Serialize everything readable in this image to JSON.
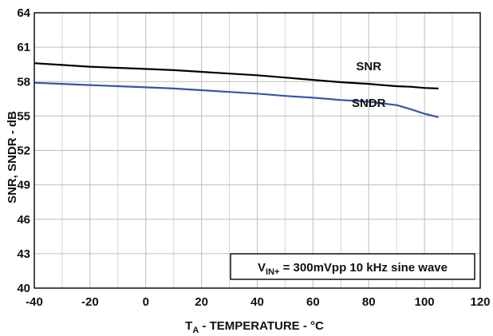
{
  "chart_data": {
    "type": "line",
    "xlabel": {
      "main": "T",
      "sub": "A",
      "rest": " - TEMPERATURE - °C"
    },
    "ylabel": "SNR, SNDR - dB",
    "xlim": [
      -40,
      120
    ],
    "ylim": [
      40,
      64
    ],
    "x_ticks": [
      "-40",
      "-20",
      "0",
      "20",
      "40",
      "60",
      "80",
      "100",
      "120"
    ],
    "y_ticks": [
      "40",
      "43",
      "46",
      "49",
      "52",
      "55",
      "58",
      "61",
      "64"
    ],
    "x_tick_values": [
      -40,
      -20,
      0,
      20,
      40,
      60,
      80,
      100,
      120
    ],
    "y_tick_values": [
      40,
      43,
      46,
      49,
      52,
      55,
      58,
      61,
      64
    ],
    "x_minor_values": [
      -30,
      -10,
      10,
      30,
      50,
      70,
      90,
      110
    ],
    "grid": true,
    "series": [
      {
        "name": "SNR",
        "color": "#000000",
        "x": [
          -40,
          -30,
          -20,
          -10,
          0,
          10,
          20,
          30,
          40,
          50,
          60,
          70,
          80,
          85,
          90,
          95,
          100,
          105
        ],
        "y": [
          59.6,
          59.45,
          59.3,
          59.2,
          59.1,
          59.0,
          58.85,
          58.7,
          58.55,
          58.35,
          58.15,
          57.95,
          57.8,
          57.7,
          57.6,
          57.55,
          57.45,
          57.4
        ]
      },
      {
        "name": "SNDR",
        "color": "#3355aa",
        "x": [
          -40,
          -30,
          -20,
          -10,
          0,
          10,
          20,
          30,
          40,
          50,
          60,
          70,
          80,
          85,
          90,
          95,
          100,
          105
        ],
        "y": [
          57.9,
          57.8,
          57.7,
          57.6,
          57.5,
          57.4,
          57.25,
          57.1,
          56.95,
          56.75,
          56.6,
          56.4,
          56.25,
          56.1,
          55.95,
          55.6,
          55.2,
          54.9
        ]
      }
    ],
    "series_labels": [
      {
        "text": "SNR",
        "x": 80,
        "y": 59.0
      },
      {
        "text": "SNDR",
        "x": 80,
        "y": 55.8
      }
    ],
    "annotation": {
      "main": "V",
      "sub": "IN+",
      "rest": " = 300mVpp 10 kHz sine wave"
    }
  }
}
